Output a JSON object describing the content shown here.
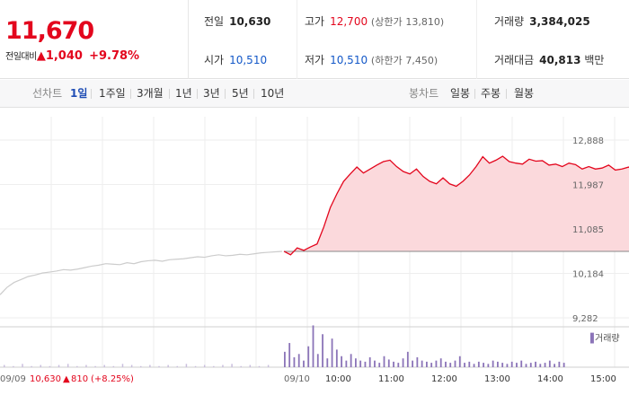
{
  "quote": {
    "current_price": "11,670",
    "change_label": "전일대비",
    "change_arrow": "▲",
    "change_amount": "1,040",
    "change_percent": "+9.78%"
  },
  "stats": {
    "prev_close_label": "전일",
    "prev_close": "10,630",
    "high_label": "고가",
    "high": "12,700",
    "upper_limit_label": "(상한가",
    "upper_limit": "13,810)",
    "volume_label": "거래량",
    "volume": "3,384,025",
    "open_label": "시가",
    "open": "10,510",
    "low_label": "저가",
    "low": "10,510",
    "lower_limit_label": "(하한가",
    "lower_limit": "7,450)",
    "trade_value_label": "거래대금",
    "trade_value": "40,813",
    "trade_value_unit": "백만"
  },
  "tabs": {
    "line_chart_label": "선차트",
    "periods": [
      "1일",
      "1주일",
      "3개월",
      "1년",
      "3년",
      "5년",
      "10년"
    ],
    "active_period": "1일",
    "candle_label": "봉차트",
    "candle_periods": [
      "일봉",
      "주봉",
      "월봉"
    ]
  },
  "colors": {
    "up": "#e3061d",
    "down": "#1358c8",
    "fill": "#fbd9dc",
    "prev_day_line": "#cccccc",
    "volume": "#8b74b8"
  },
  "chart_data": {
    "type": "line",
    "y_ticks": [
      "12,888",
      "11,987",
      "11,085",
      "10,184",
      "9,282"
    ],
    "ylim": [
      9282,
      12888
    ],
    "baseline": 10630,
    "x_ticks": [
      "09/10",
      "10:00",
      "11:00",
      "12:00",
      "13:00",
      "14:00",
      "15:00"
    ],
    "prev_day_footer": "09/09",
    "prev_day_close": "10,630",
    "prev_day_change": "810",
    "prev_day_change_pct": "(+8.25%)",
    "prev_day_arrow": "▲",
    "volume_legend": "거래량",
    "series": [
      {
        "name": "09/09",
        "x_step": 0.25,
        "values": [
          9750,
          9900,
          10000,
          10060,
          10120,
          10150,
          10190,
          10210,
          10230,
          10260,
          10250,
          10270,
          10300,
          10330,
          10350,
          10380,
          10370,
          10360,
          10400,
          10380,
          10420,
          10440,
          10450,
          10430,
          10460,
          10470,
          10480,
          10500,
          10520,
          10510,
          10540,
          10560,
          10540,
          10550,
          10570,
          10560,
          10580,
          10600,
          10610,
          10620,
          10630
        ]
      },
      {
        "name": "09/10",
        "x_step": 0.125,
        "values": [
          10630,
          10560,
          10700,
          10650,
          10720,
          10780,
          11120,
          11520,
          11800,
          12050,
          12200,
          12340,
          12220,
          12300,
          12380,
          12450,
          12480,
          12350,
          12250,
          12200,
          12300,
          12150,
          12050,
          12000,
          12120,
          12000,
          11950,
          12050,
          12180,
          12350,
          12550,
          12420,
          12480,
          12560,
          12450,
          12420,
          12400,
          12500,
          12460,
          12470,
          12380,
          12400,
          12350,
          12420,
          12390,
          12300,
          12350,
          12300,
          12320,
          12380,
          12280,
          12300,
          12340,
          12260,
          12330,
          12290,
          12310,
          12200,
          12270,
          12250,
          12240,
          12260,
          12200,
          12150,
          12120,
          12170,
          12100,
          12050,
          12030,
          12060,
          12000,
          11960,
          12080,
          12000,
          11980,
          11900,
          11850,
          11820,
          11780,
          11800,
          11760,
          11730,
          11720,
          11690,
          11700,
          11680,
          11670
        ]
      }
    ],
    "volume": {
      "prev_day": [
        2,
        1,
        3,
        1,
        2,
        1,
        2,
        3,
        1,
        2,
        1,
        2,
        1,
        3,
        2,
        1,
        2,
        1,
        2,
        1,
        3,
        1,
        2,
        1,
        2,
        3,
        1,
        2,
        1,
        2
      ],
      "today": [
        14,
        22,
        9,
        12,
        6,
        19,
        38,
        12,
        30,
        8,
        26,
        16,
        10,
        6,
        12,
        8,
        6,
        5,
        9,
        6,
        4,
        10,
        7,
        5,
        4,
        8,
        14,
        6,
        9,
        6,
        5,
        4,
        6,
        8,
        5,
        4,
        6,
        10,
        4,
        5,
        3,
        5,
        4,
        3,
        6,
        5,
        4,
        3,
        5,
        4,
        6,
        3,
        4,
        5,
        3,
        4,
        6,
        3,
        5,
        4
      ]
    }
  }
}
